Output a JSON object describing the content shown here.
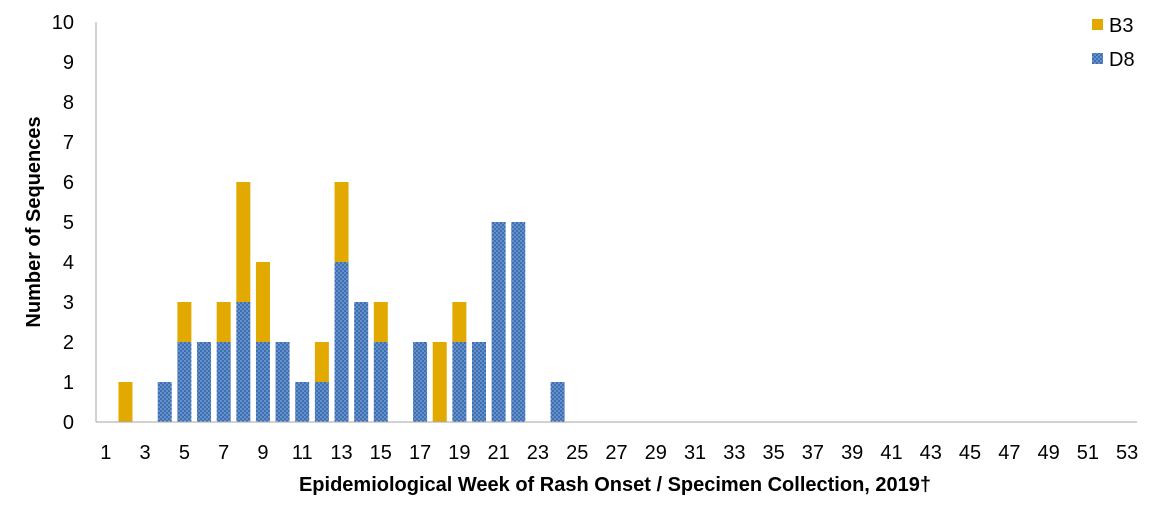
{
  "chart_data": {
    "type": "bar",
    "stacked": true,
    "xlabel": "Epidemiological Week of Rash Onset / Specimen Collection, 2019†",
    "ylabel": "Number of Sequences",
    "ylim": [
      0,
      10
    ],
    "yticks": [
      0,
      1,
      2,
      3,
      4,
      5,
      6,
      7,
      8,
      9,
      10
    ],
    "categories": [
      1,
      2,
      3,
      4,
      5,
      6,
      7,
      8,
      9,
      10,
      11,
      12,
      13,
      14,
      15,
      16,
      17,
      18,
      19,
      20,
      21,
      22,
      23,
      24,
      25,
      26,
      27,
      28,
      29,
      30,
      31,
      32,
      33,
      34,
      35,
      36,
      37,
      38,
      39,
      40,
      41,
      42,
      43,
      44,
      45,
      46,
      47,
      48,
      49,
      50,
      51,
      52,
      53
    ],
    "xtick_labels": [
      "1",
      "3",
      "5",
      "7",
      "9",
      "11",
      "13",
      "15",
      "17",
      "19",
      "21",
      "23",
      "25",
      "27",
      "29",
      "31",
      "33",
      "35",
      "37",
      "39",
      "41",
      "43",
      "45",
      "47",
      "49",
      "51",
      "53"
    ],
    "legend_position": "top-right",
    "series": [
      {
        "name": "D8",
        "color": "#3f6fb3",
        "pattern": "dotted",
        "values": [
          0,
          0,
          0,
          1,
          2,
          2,
          2,
          3,
          2,
          2,
          1,
          1,
          4,
          3,
          2,
          0,
          2,
          0,
          2,
          2,
          5,
          5,
          0,
          1,
          0,
          0,
          0,
          0,
          0,
          0,
          0,
          0,
          0,
          0,
          0,
          0,
          0,
          0,
          0,
          0,
          0,
          0,
          0,
          0,
          0,
          0,
          0,
          0,
          0,
          0,
          0,
          0,
          0
        ]
      },
      {
        "name": "B3",
        "color": "#e2a900",
        "values": [
          0,
          1,
          0,
          0,
          1,
          0,
          1,
          3,
          2,
          0,
          0,
          1,
          2,
          0,
          1,
          0,
          0,
          2,
          1,
          0,
          0,
          0,
          0,
          0,
          0,
          0,
          0,
          0,
          0,
          0,
          0,
          0,
          0,
          0,
          0,
          0,
          0,
          0,
          0,
          0,
          0,
          0,
          0,
          0,
          0,
          0,
          0,
          0,
          0,
          0,
          0,
          0,
          0
        ]
      }
    ],
    "legend_order": [
      "B3",
      "D8"
    ]
  }
}
